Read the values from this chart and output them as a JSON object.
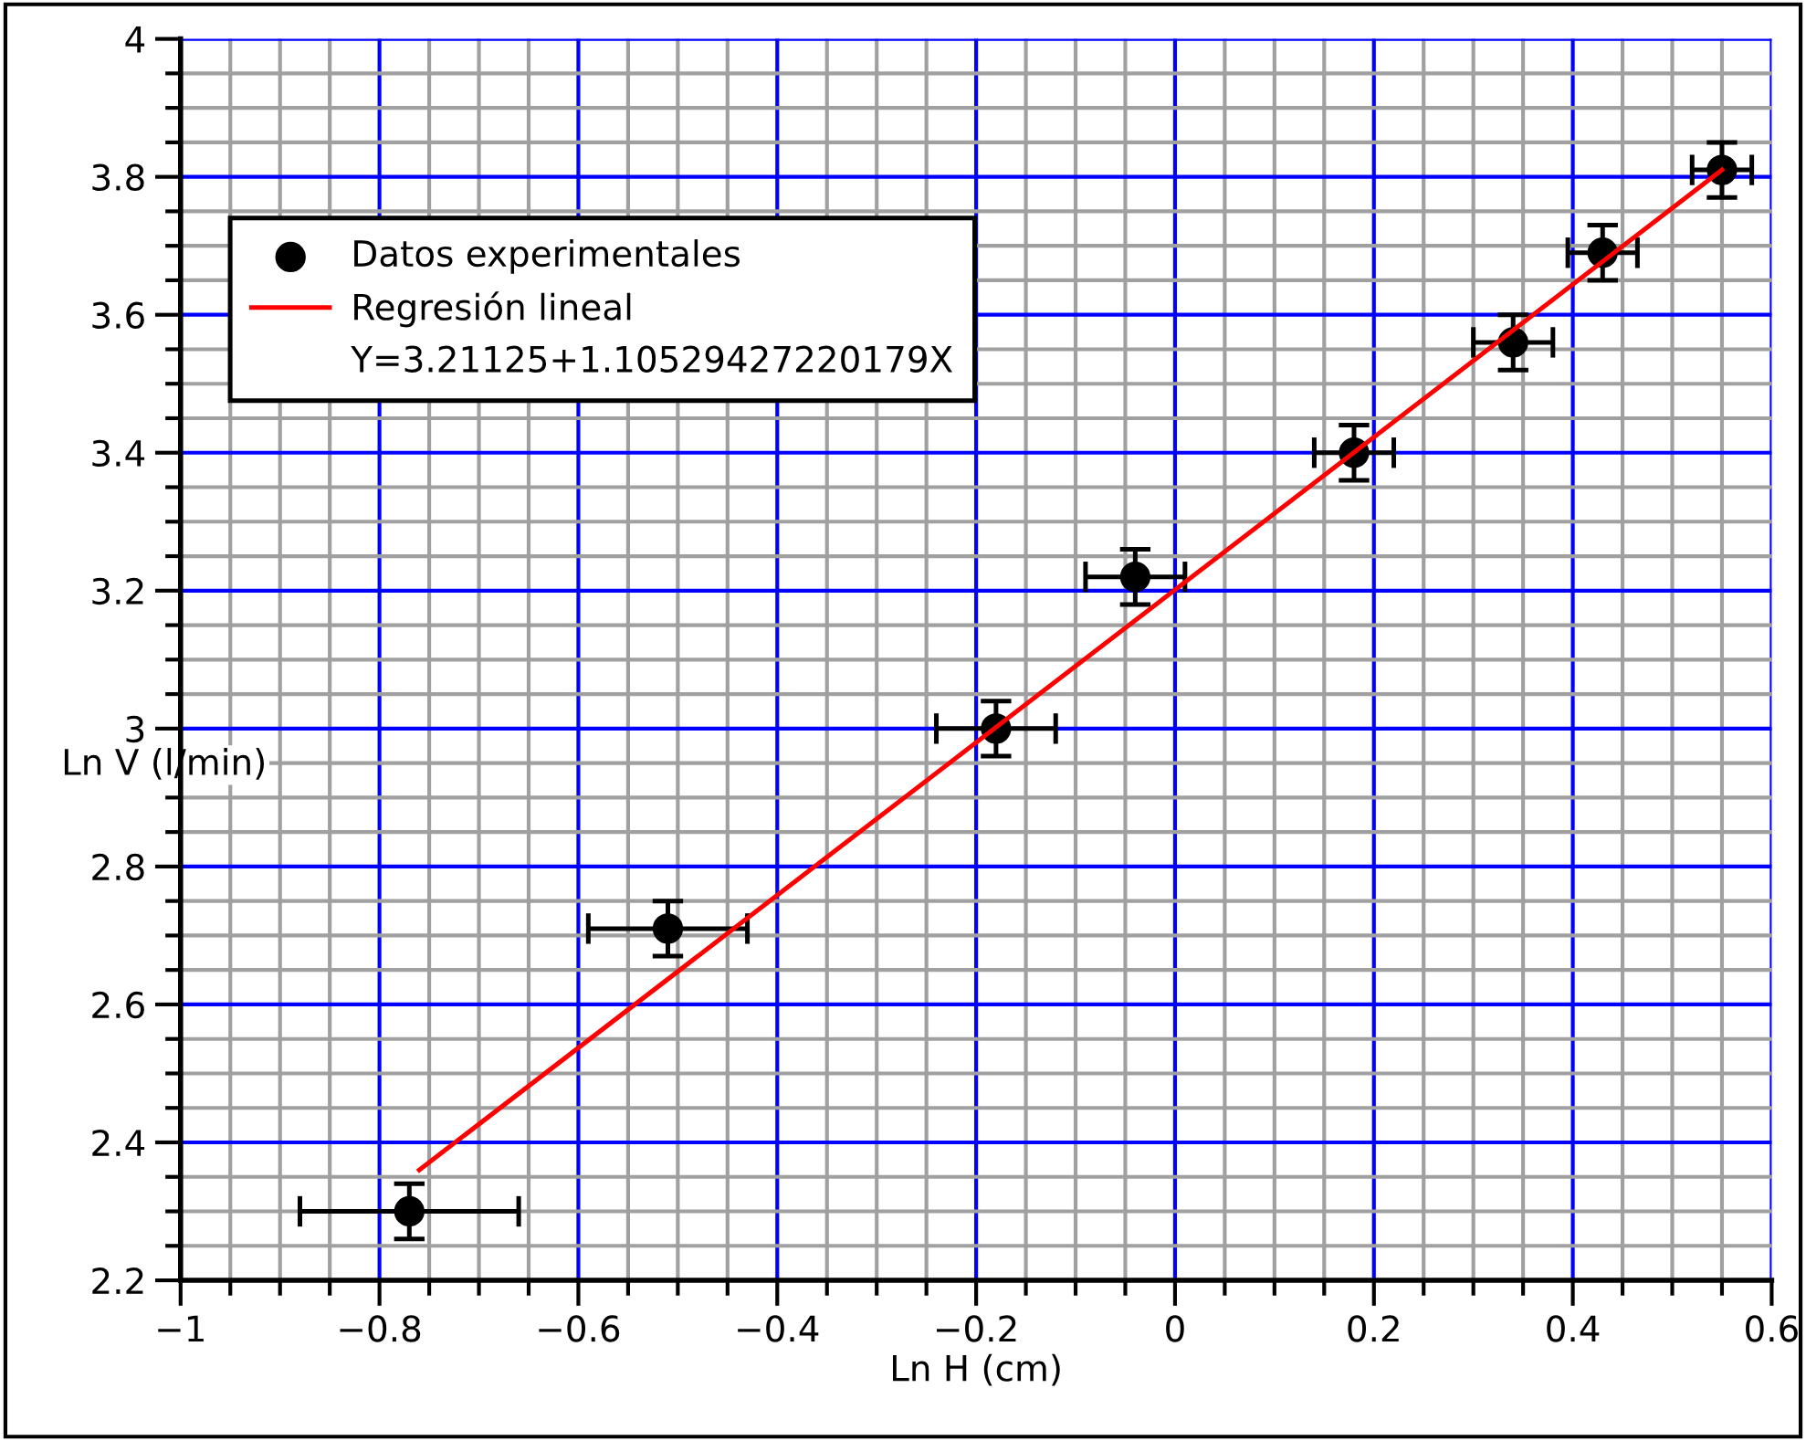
{
  "chart_data": {
    "type": "scatter",
    "xlabel": "Ln H (cm)",
    "ylabel": "Ln V (l/min)",
    "annotations": [
      "Y=3.21125+1.10529427220179X"
    ],
    "series": [
      {
        "name": "Datos experimentales",
        "marker": "circle",
        "color": "#000000",
        "x": [
          -0.77,
          -0.51,
          -0.18,
          -0.04,
          0.18,
          0.34,
          0.43,
          0.55
        ],
        "values": [
          2.3,
          2.71,
          3.0,
          3.22,
          3.4,
          3.56,
          3.69,
          3.81
        ],
        "errors": [
          0.04,
          0.04,
          0.04,
          0.04,
          0.04,
          0.04,
          0.04,
          0.04
        ],
        "xerrors": [
          0.11,
          0.08,
          0.06,
          0.05,
          0.04,
          0.04,
          0.035,
          0.03
        ]
      },
      {
        "name": "Regresión lineal",
        "type": "line",
        "color": "#ff0000",
        "x": [
          -0.76,
          0.55
        ],
        "values": [
          2.36,
          3.81
        ]
      }
    ],
    "xlim": [
      -1,
      0.6
    ],
    "ylim": [
      2.2,
      4
    ],
    "xticks": [
      {
        "value": -1,
        "label": "−1"
      },
      {
        "value": -0.8,
        "label": "−0.8"
      },
      {
        "value": -0.6,
        "label": "−0.6"
      },
      {
        "value": -0.4,
        "label": "−0.4"
      },
      {
        "value": -0.2,
        "label": "−0.2"
      },
      0,
      0.2,
      0.4,
      0.6
    ],
    "yticks": [
      2.2,
      2.4,
      2.6,
      2.8,
      3,
      3.2,
      3.4,
      3.6,
      3.8,
      4
    ],
    "grid": true,
    "legend": "top left",
    "line_style": "solid"
  }
}
